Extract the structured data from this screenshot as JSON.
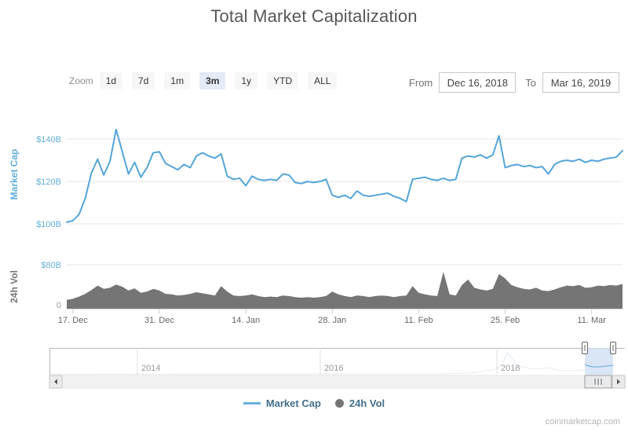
{
  "title": "Total Market Capitalization",
  "watermark": "coinmarketcap.com",
  "controls": {
    "zoom_label": "Zoom",
    "zoom_buttons": [
      "1d",
      "7d",
      "1m",
      "3m",
      "1y",
      "YTD",
      "ALL"
    ],
    "zoom_selected": "3m",
    "from_label": "From",
    "from_value": "Dec 16, 2018",
    "to_label": "To",
    "to_value": "Mar 16, 2019"
  },
  "legend": [
    {
      "label": "Market Cap",
      "marker": "line",
      "color": "#6aaede"
    },
    {
      "label": "24h Vol",
      "marker": "circle",
      "color": "#757575"
    }
  ],
  "navigator": {
    "year_labels": [
      "2014",
      "2016",
      "2018"
    ]
  },
  "chart_data": [
    {
      "type": "line",
      "name": "Market Cap",
      "ylabel": "Market Cap",
      "color": "#54a5d9",
      "axis_color": "#62aed9",
      "yticks": [
        "$100B",
        "$120B",
        "$140B"
      ],
      "ytick_values": [
        100,
        120,
        140
      ],
      "ylim": [
        98,
        148
      ],
      "x_range": [
        "Dec 16, 2018",
        "Mar 16, 2019"
      ],
      "xticklabels": [
        "17. Dec",
        "31. Dec",
        "14. Jan",
        "28. Jan",
        "11. Feb",
        "25. Feb",
        "11. Mar"
      ],
      "xtick_days": [
        1,
        15,
        29,
        43,
        57,
        71,
        85
      ],
      "values": [
        100.8,
        101.5,
        104.5,
        112,
        124,
        130.5,
        123,
        129.5,
        144.5,
        134,
        123.5,
        129,
        122,
        126.5,
        133.5,
        134,
        128.5,
        127,
        125.5,
        128,
        126.5,
        132,
        133.5,
        132,
        131,
        133,
        122.5,
        121,
        121.5,
        118,
        122.5,
        121,
        120.5,
        121,
        120.5,
        123.5,
        123,
        119.5,
        119,
        120,
        119.5,
        120,
        121,
        113.5,
        112.5,
        113.5,
        112,
        115.5,
        113.5,
        113,
        113.5,
        114,
        114.5,
        113,
        112,
        110.5,
        121,
        121.5,
        122,
        121,
        120.5,
        121.5,
        120.5,
        121,
        131,
        132,
        131.5,
        132.5,
        131,
        132.5,
        141.5,
        126.5,
        127.5,
        128,
        127,
        127.5,
        126.5,
        127,
        123.5,
        128,
        129.5,
        130,
        129.5,
        130.5,
        129,
        130,
        129.5,
        130.5,
        131,
        131.5,
        134.5
      ]
    },
    {
      "type": "area",
      "name": "24h Vol",
      "ylabel": "24h Vol",
      "color": "#757575",
      "axis_color": "#757575",
      "yticks": [
        "0",
        "$80B"
      ],
      "ytick_values": [
        0,
        80
      ],
      "ytick_colors": [
        "#999999",
        "#6ab0d8"
      ],
      "ylim": [
        0,
        112
      ],
      "values": [
        16,
        18,
        22,
        27,
        34,
        42,
        36,
        38,
        44,
        40,
        33,
        37,
        29,
        31,
        36,
        33,
        27,
        26,
        24,
        25,
        27,
        30,
        28,
        26,
        24,
        41,
        31,
        24,
        23,
        24,
        26,
        23,
        21,
        22,
        21,
        24,
        23,
        21,
        20,
        21,
        20,
        21,
        23,
        31,
        26,
        23,
        21,
        24,
        23,
        21,
        23,
        24,
        23,
        21,
        23,
        24,
        41,
        29,
        26,
        24,
        23,
        67,
        26,
        24,
        43,
        53,
        38,
        35,
        33,
        36,
        63,
        55,
        43,
        39,
        36,
        35,
        38,
        33,
        32,
        35,
        39,
        42,
        41,
        43,
        38,
        39,
        42,
        41,
        43,
        42,
        45
      ]
    }
  ]
}
